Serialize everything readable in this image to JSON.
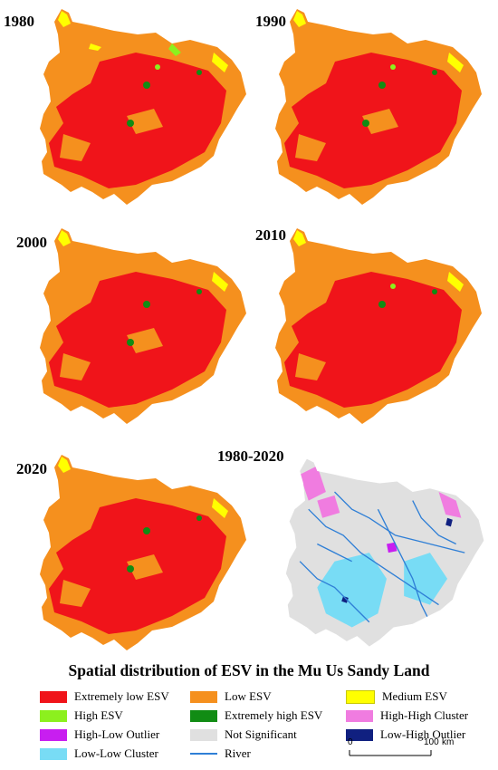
{
  "panels": [
    {
      "year": "1980"
    },
    {
      "year": "1990"
    },
    {
      "year": "2000"
    },
    {
      "year": "2010"
    },
    {
      "year": "2020"
    },
    {
      "year": "1980-2020"
    }
  ],
  "title": "Spatial distribution of ESV in the Mu Us Sandy Land",
  "legend": [
    {
      "label": "Extremely low ESV",
      "color": "#f0141a"
    },
    {
      "label": "Low ESV",
      "color": "#f5901e"
    },
    {
      "label": "Medium ESV",
      "color": "#ffff00"
    },
    {
      "label": "High ESV",
      "color": "#8cf01e"
    },
    {
      "label": "Extremely high ESV",
      "color": "#118c14"
    },
    {
      "label": "High-High Cluster",
      "color": "#f07ce0"
    },
    {
      "label": "High-Low Outlier",
      "color": "#c81ef0"
    },
    {
      "label": "Not Significant",
      "color": "#e0e0e0"
    },
    {
      "label": "Low-High Outlier",
      "color": "#102080"
    },
    {
      "label": "Low-Low Cluster",
      "color": "#78dcf5"
    },
    {
      "label": "River",
      "color": "#2f7fd6"
    }
  ],
  "scale": {
    "zero": "0",
    "max": "100",
    "unit": "km"
  }
}
